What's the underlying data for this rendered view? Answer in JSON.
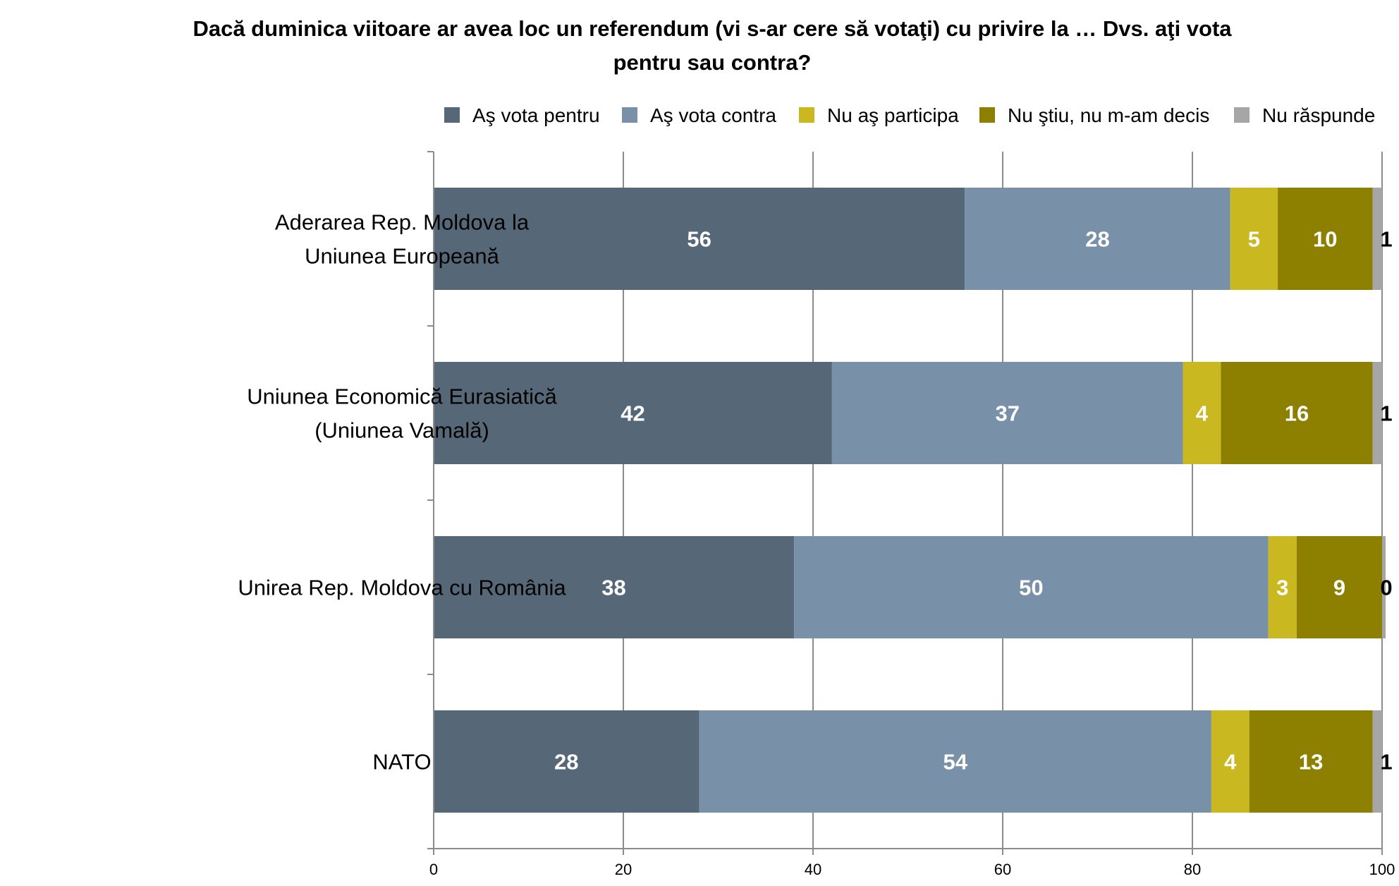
{
  "chart_data": {
    "type": "bar",
    "orientation": "horizontal",
    "stacked": true,
    "title_lines": [
      "Dacă duminica viitoare ar avea loc un referendum (vi s-ar cere să votaţi) cu privire la … Dvs. aţi vota",
      "pentru sau contra?"
    ],
    "categories": [
      [
        "Aderarea Rep. Moldova la",
        "Uniunea Europeană"
      ],
      [
        "Uniunea Economică Eurasiatică",
        "(Uniunea Vamală)"
      ],
      [
        "Unirea Rep. Moldova cu România"
      ],
      [
        "NATO"
      ]
    ],
    "series": [
      {
        "name": "Aş vota pentru",
        "color": "#566878",
        "label_color": "#ffffff",
        "values": [
          56,
          42,
          38,
          28
        ]
      },
      {
        "name": "Aş vota contra",
        "color": "#7891a8",
        "label_color": "#ffffff",
        "values": [
          28,
          37,
          50,
          54
        ]
      },
      {
        "name": "Nu aş participa",
        "color": "#c9b820",
        "label_color": "#ffffff",
        "values": [
          5,
          4,
          3,
          4
        ]
      },
      {
        "name": "Nu ştiu, nu m-am decis",
        "color": "#8d8000",
        "label_color": "#ffffff",
        "values": [
          10,
          16,
          9,
          13
        ]
      },
      {
        "name": "Nu răspunde",
        "color": "#a6a6a6",
        "label_color": "#000000",
        "values": [
          1,
          1,
          0,
          1
        ]
      }
    ],
    "xlim": [
      0,
      100
    ],
    "xticks": [
      "0",
      "20",
      "40",
      "60",
      "80",
      "100"
    ],
    "grid": true,
    "legend_position": "top-right"
  }
}
